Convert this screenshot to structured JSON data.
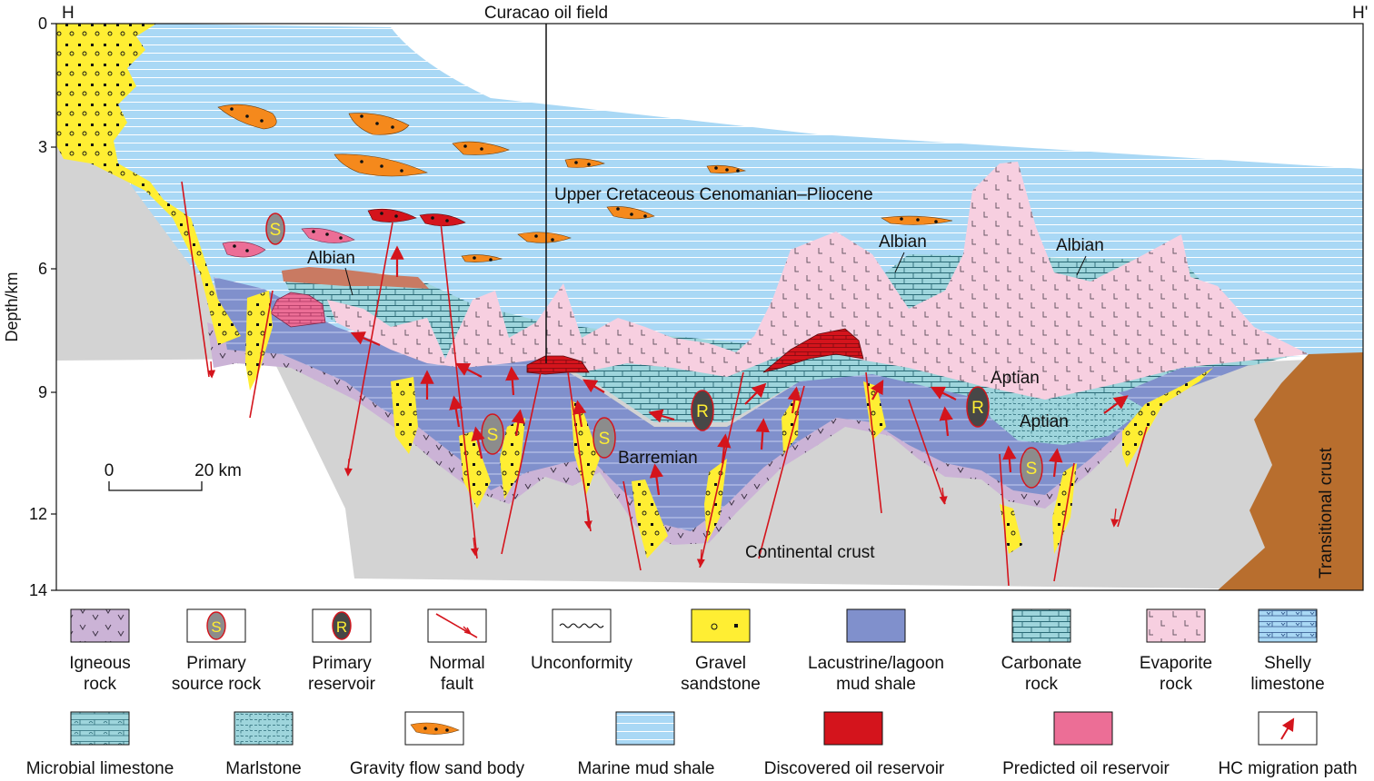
{
  "figure": {
    "section_start_label": "H",
    "section_end_label": "H'",
    "oil_field_label": "Curacao oil field"
  },
  "axis": {
    "ylabel": "Depth/km",
    "ticks": [
      "0",
      "3",
      "6",
      "9",
      "12",
      "14"
    ]
  },
  "scale_bar": {
    "start_label": "0",
    "end_label": "20 km"
  },
  "section_labels": {
    "upper_cretaceous": "Upper Cretaceous Cenomanian–Pliocene",
    "albian_left": "Albian",
    "albian_center": "Albian",
    "albian_right": "Albian",
    "aptian_upper": "Aptian",
    "aptian_lower": "Aptian",
    "barremian": "Barremian",
    "continental_crust": "Continental crust",
    "transitional_crust": "Transitional crust",
    "source_rock_marker": "S",
    "reservoir_marker": "R"
  },
  "colors": {
    "marine_mud_shale": "#a9d8f5",
    "lacustrine_mud_shale": "#8090cc",
    "carbonate_rock": "#9ed5dc",
    "evaporite_rock": "#f7cfe0",
    "igneous_rock": "#cbb3d6",
    "gravel_sandstone": "#ffee33",
    "continental_crust": "#d3d3d3",
    "transitional_crust": "#b86e2e",
    "discovered_oil_reservoir": "#d4141c",
    "predicted_oil_reservoir": "#ec6e96",
    "gravity_flow_sand": "#f5891c",
    "source_rock": "#8c8c8c",
    "reservoir_body": "#474747",
    "fault": "#d4141c",
    "albian_brown": "#c97a62"
  },
  "legend": [
    {
      "key": "igneous",
      "label": "Igneous rock",
      "line1": "Igneous",
      "line2": "rock",
      "icon": "igneous-icon"
    },
    {
      "key": "source",
      "label": "Primary source rock",
      "line1": "Primary",
      "line2": "source rock",
      "icon": "source-rock-icon"
    },
    {
      "key": "reservoir",
      "label": "Primary reservoir",
      "line1": "Primary",
      "line2": "reservoir",
      "icon": "reservoir-icon"
    },
    {
      "key": "fault",
      "label": "Normal fault",
      "line1": "Normal",
      "line2": "fault",
      "icon": "normal-fault-icon"
    },
    {
      "key": "unconformity",
      "label": "Unconformity",
      "line1": "Unconformity",
      "line2": "",
      "icon": "unconformity-icon"
    },
    {
      "key": "gravel",
      "label": "Gravel sandstone",
      "line1": "Gravel",
      "line2": "sandstone",
      "icon": "gravel-sandstone-icon"
    },
    {
      "key": "lacustrine",
      "label": "Lacustrine/lagoon mud shale",
      "line1": "Lacustrine/lagoon",
      "line2": "mud shale",
      "icon": "lacustrine-mud-shale-icon"
    },
    {
      "key": "carbonate",
      "label": "Carbonate rock",
      "line1": "Carbonate",
      "line2": "rock",
      "icon": "carbonate-rock-icon"
    },
    {
      "key": "evaporite",
      "label": "Evaporite rock",
      "line1": "Evaporite",
      "line2": "rock",
      "icon": "evaporite-rock-icon"
    },
    {
      "key": "shelly",
      "label": "Shelly limestone",
      "line1": "Shelly",
      "line2": "limestone",
      "icon": "shelly-limestone-icon"
    },
    {
      "key": "microbial",
      "label": "Microbial limestone",
      "line1": "Microbial limestone",
      "line2": "",
      "icon": "microbial-limestone-icon"
    },
    {
      "key": "marlstone",
      "label": "Marlstone",
      "line1": "Marlstone",
      "line2": "",
      "icon": "marlstone-icon"
    },
    {
      "key": "gravity",
      "label": "Gravity flow sand body",
      "line1": "Gravity flow sand body",
      "line2": "",
      "icon": "gravity-flow-sand-icon"
    },
    {
      "key": "marine",
      "label": "Marine mud shale",
      "line1": "Marine mud shale",
      "line2": "",
      "icon": "marine-mud-shale-icon"
    },
    {
      "key": "discovered",
      "label": "Discovered oil reservoir",
      "line1": "Discovered oil reservoir",
      "line2": "",
      "icon": "discovered-oil-reservoir-icon"
    },
    {
      "key": "predicted",
      "label": "Predicted oil reservoir",
      "line1": "Predicted oil reservoir",
      "line2": "",
      "icon": "predicted-oil-reservoir-icon"
    },
    {
      "key": "migration",
      "label": "HC migration path",
      "line1": "HC migration path",
      "line2": "",
      "icon": "hc-migration-path-icon"
    }
  ]
}
